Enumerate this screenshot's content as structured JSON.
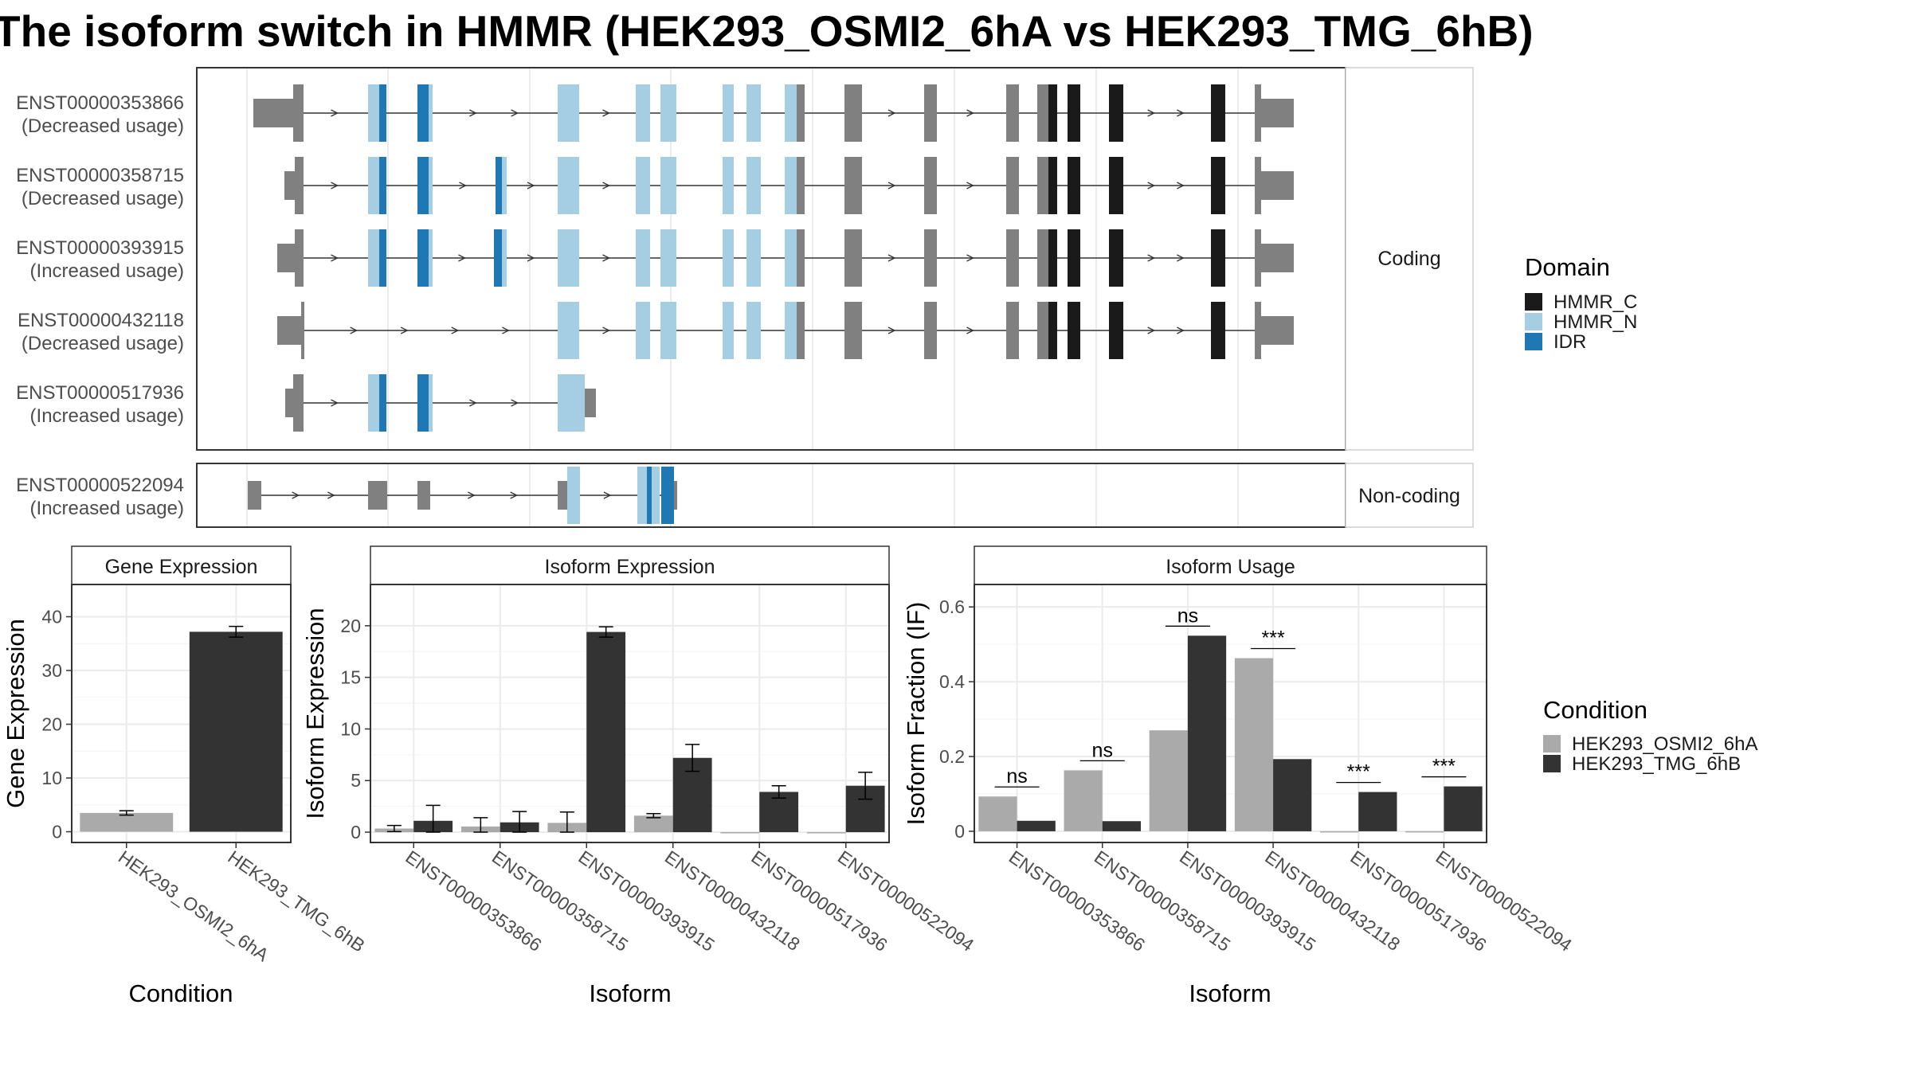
{
  "title": "The isoform switch in HMMR (HEK293_OSMI2_6hA vs HEK293_TMG_6hB)",
  "colors": {
    "exon": "#808080",
    "HMMR_C": "#1a1a1a",
    "HMMR_N": "#a6cee3",
    "IDR": "#1f78b4",
    "cond_a": "#aaaaaa",
    "cond_b": "#333333",
    "grid": "#ebebeb",
    "panel_border": "#333333"
  },
  "chart_data": [
    {
      "type": "gene-structure",
      "facets": [
        "Coding",
        "Non-coding"
      ],
      "transcripts": [
        {
          "id": "ENST00000353866",
          "usage": "(Decreased usage)",
          "facet": "Coding"
        },
        {
          "id": "ENST00000358715",
          "usage": "(Decreased usage)",
          "facet": "Coding"
        },
        {
          "id": "ENST00000393915",
          "usage": "(Increased usage)",
          "facet": "Coding"
        },
        {
          "id": "ENST00000432118",
          "usage": "(Decreased usage)",
          "facet": "Coding"
        },
        {
          "id": "ENST00000517936",
          "usage": "(Increased usage)",
          "facet": "Coding"
        },
        {
          "id": "ENST00000522094",
          "usage": "(Increased usage)",
          "facet": "Non-coding"
        }
      ],
      "legend": {
        "title": "Domain",
        "entries": [
          "HMMR_C",
          "HMMR_N",
          "IDR"
        ]
      }
    },
    {
      "type": "bar",
      "title": "Gene Expression",
      "xlabel": "Condition",
      "ylabel": "Gene Expression",
      "categories": [
        "HEK293_OSMI2_6hA",
        "HEK293_TMG_6hB"
      ],
      "values": [
        3.5,
        37.2
      ],
      "error": [
        [
          3.1,
          3.9
        ],
        [
          36.2,
          38.2
        ]
      ],
      "yticks": [
        0,
        10,
        20,
        30,
        40
      ],
      "ylim": [
        -2,
        46
      ]
    },
    {
      "type": "bar",
      "title": "Isoform Expression",
      "xlabel": "Isoform",
      "ylabel": "Isoform Expression",
      "categories": [
        "ENST00000353866",
        "ENST00000358715",
        "ENST00000393915",
        "ENST00000432118",
        "ENST00000517936",
        "ENST00000522094"
      ],
      "series": [
        {
          "name": "HEK293_OSMI2_6hA",
          "values": [
            0.35,
            0.55,
            0.9,
            1.6,
            0,
            0
          ],
          "error": [
            [
              0.05,
              0.65
            ],
            [
              0.0,
              1.4
            ],
            [
              0.0,
              1.95
            ],
            [
              1.4,
              1.8
            ],
            [
              0,
              0
            ],
            [
              0,
              0
            ]
          ]
        },
        {
          "name": "HEK293_TMG_6hB",
          "values": [
            1.1,
            0.95,
            19.4,
            7.2,
            3.9,
            4.5
          ],
          "error": [
            [
              0.0,
              2.6
            ],
            [
              0.0,
              2.0
            ],
            [
              18.9,
              19.9
            ],
            [
              5.9,
              8.5
            ],
            [
              3.3,
              4.5
            ],
            [
              3.2,
              5.8
            ]
          ]
        }
      ],
      "yticks": [
        0,
        5,
        10,
        15,
        20
      ],
      "ylim": [
        -1,
        24
      ]
    },
    {
      "type": "bar",
      "title": "Isoform Usage",
      "xlabel": "Isoform",
      "ylabel": "Isoform Fraction (IF)",
      "categories": [
        "ENST00000353866",
        "ENST00000358715",
        "ENST00000393915",
        "ENST00000432118",
        "ENST00000517936",
        "ENST00000522094"
      ],
      "series": [
        {
          "name": "HEK293_OSMI2_6hA",
          "values": [
            0.093,
            0.163,
            0.27,
            0.463,
            0,
            0
          ]
        },
        {
          "name": "HEK293_TMG_6hB",
          "values": [
            0.028,
            0.027,
            0.523,
            0.193,
            0.105,
            0.12
          ]
        }
      ],
      "significance": [
        "ns",
        "ns",
        "ns",
        "***",
        "***",
        "***"
      ],
      "yticks": [
        0.0,
        0.2,
        0.4,
        0.6
      ],
      "ylim": [
        -0.03,
        0.66
      ]
    }
  ],
  "condition_legend": {
    "title": "Condition",
    "entries": [
      "HEK293_OSMI2_6hA",
      "HEK293_TMG_6hB"
    ]
  }
}
